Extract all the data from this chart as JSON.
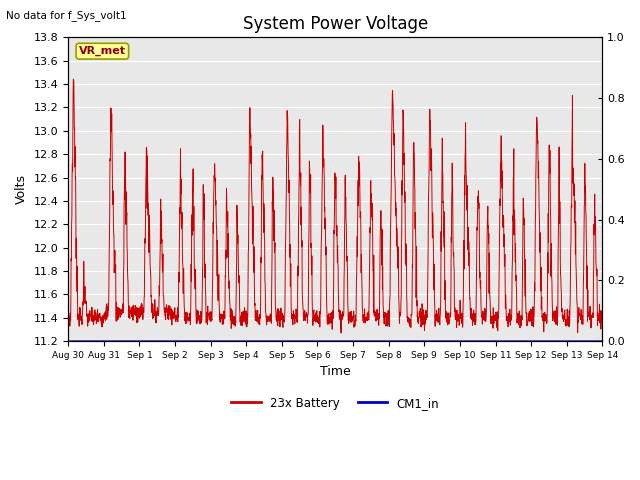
{
  "title": "System Power Voltage",
  "top_left_text": "No data for f_Sys_volt1",
  "ylabel_left": "Volts",
  "xlabel": "Time",
  "ylim_left": [
    11.2,
    13.8
  ],
  "ylim_right": [
    0.0,
    1.0
  ],
  "background_color": "#ffffff",
  "plot_bg_color": "#e8e8e8",
  "grid_color": "#ffffff",
  "line_color_battery": "#cc0000",
  "line_color_cm1": "#0000cc",
  "legend_entries": [
    "23x Battery",
    "CM1_in"
  ],
  "legend_colors": [
    "#cc0000",
    "#0000cc"
  ],
  "annotation_box_text": "VR_met",
  "annotation_box_color": "#ffff99",
  "annotation_box_edgecolor": "#999900",
  "x_tick_labels": [
    "Aug 30",
    "Aug 31",
    "Sep 1",
    "Sep 2",
    "Sep 3",
    "Sep 4",
    "Sep 5",
    "Sep 6",
    "Sep 7",
    "Sep 8",
    "Sep 9",
    "Sep 10",
    "Sep 11",
    "Sep 12",
    "Sep 13",
    "Sep 14"
  ],
  "right_yticks": [
    0.0,
    0.2,
    0.4,
    0.6,
    0.8,
    1.0
  ],
  "right_ytick_labels": [
    "0.0",
    "0.2",
    "0.4",
    "0.6",
    "0.8",
    "1.0"
  ],
  "left_yticks": [
    11.2,
    11.4,
    11.6,
    11.8,
    12.0,
    12.2,
    12.4,
    12.6,
    12.8,
    13.0,
    13.2,
    13.4,
    13.6,
    13.8
  ],
  "title_fontsize": 12,
  "axis_fontsize": 9,
  "tick_fontsize": 8,
  "annot_fontsize": 8
}
